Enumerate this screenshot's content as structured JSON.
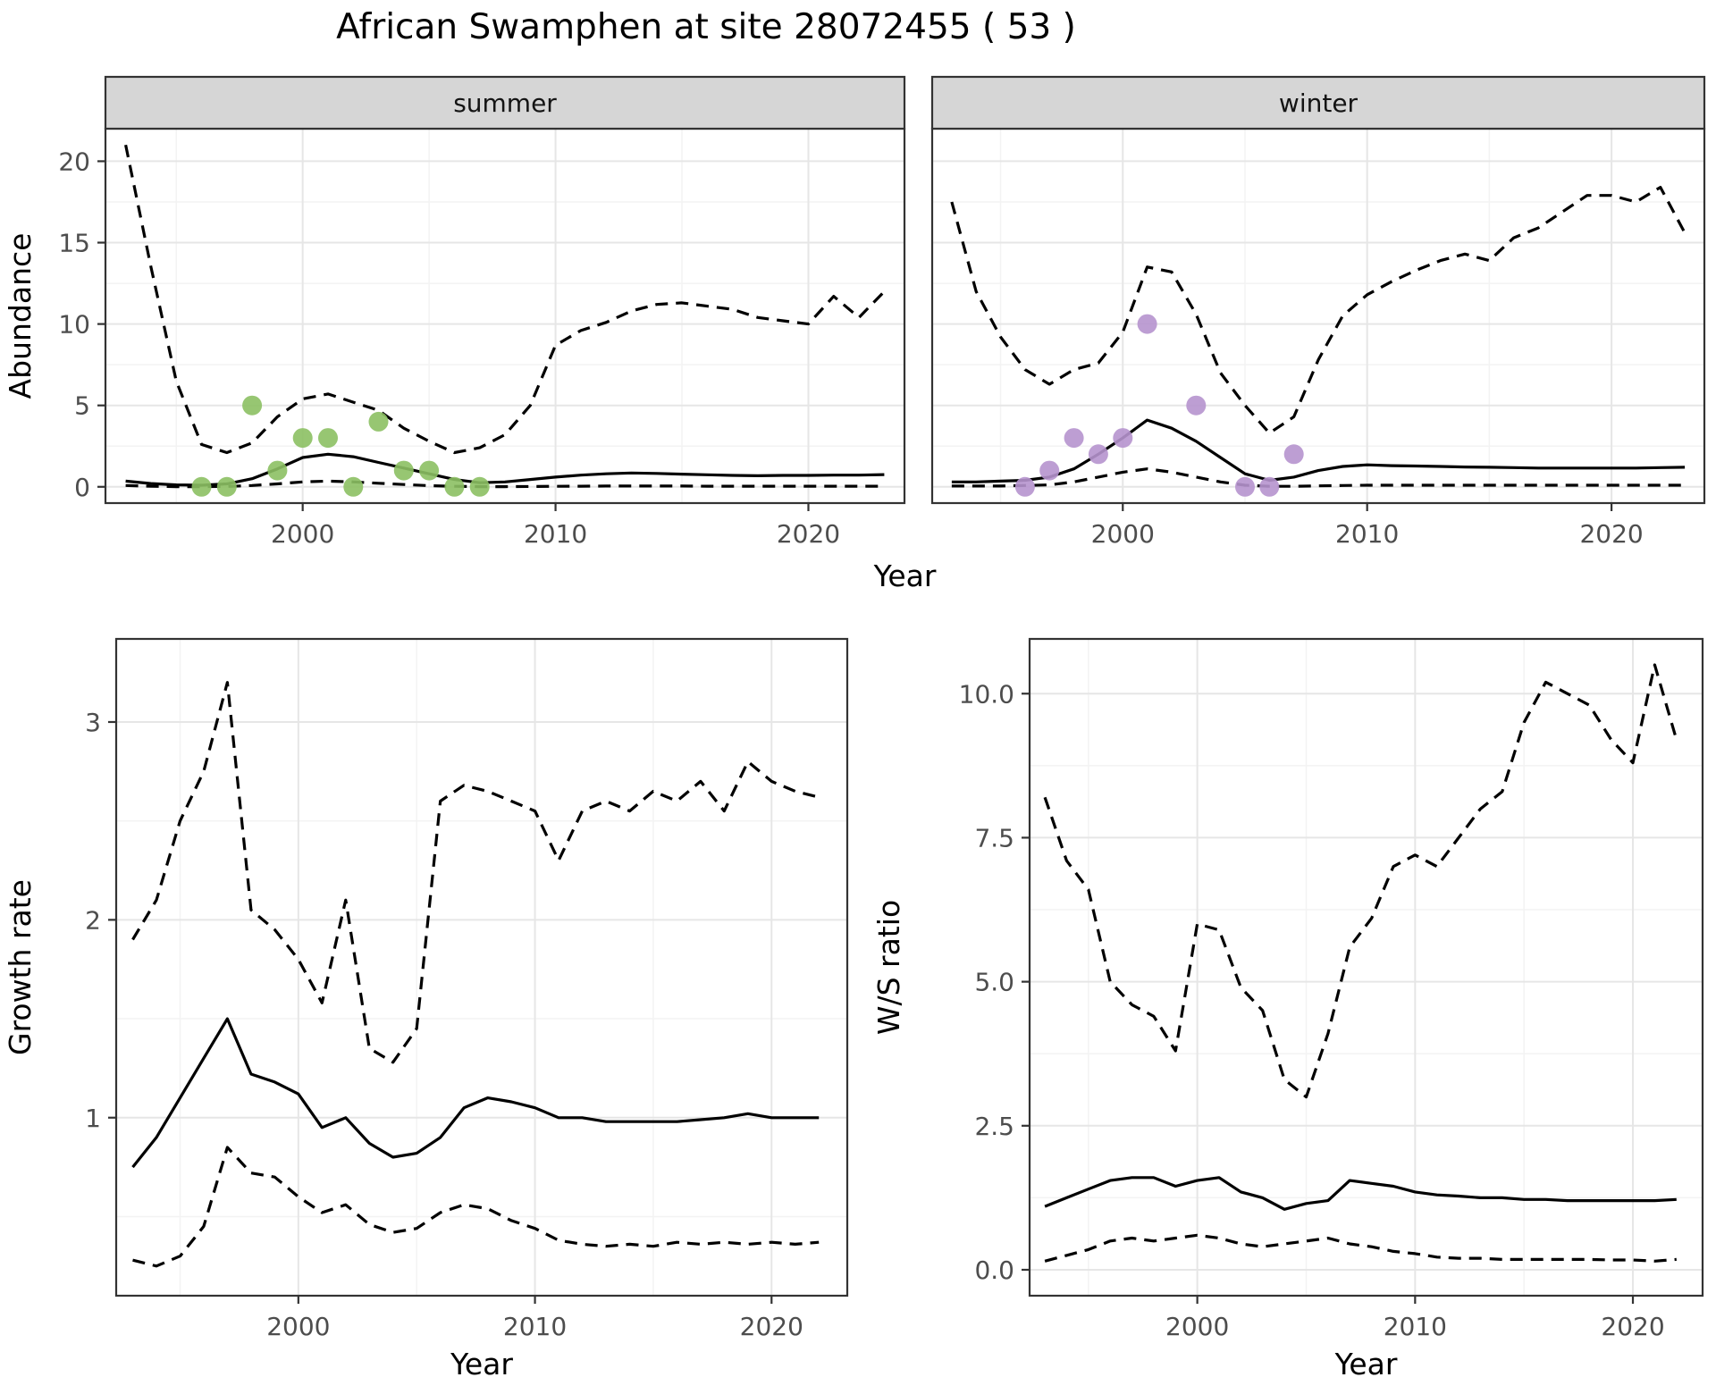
{
  "title": "African Swamphen at site 28072455 ( 53 )",
  "colors": {
    "line": "#000000",
    "strip_bg": "#d6d6d6",
    "panel_border": "#333333",
    "grid_major": "#e6e6e6",
    "grid_minor": "#f3f3f3",
    "tick_label": "#4d4d4d",
    "summer_point": "#8cc063",
    "winter_point": "#b694ce"
  },
  "chart_data": [
    {
      "id": "abundance",
      "type": "line",
      "xlabel": "Year",
      "ylabel": "Abundance",
      "xlim": [
        1992.2,
        2023.8
      ],
      "ylim": [
        -1.0,
        22.0
      ],
      "xticks": [
        2000,
        2010,
        2020
      ],
      "xtick_labels": [
        "2000",
        "2010",
        "2020"
      ],
      "yticks": [
        0,
        5,
        10,
        15,
        20
      ],
      "ytick_labels": [
        "0",
        "5",
        "10",
        "15",
        "20"
      ],
      "xminor": [
        1995,
        2005,
        2015
      ],
      "yminor": [
        2.5,
        7.5,
        12.5,
        17.5
      ],
      "facets": [
        {
          "label": "summer",
          "point_color": "#8cc063",
          "x": [
            1993,
            1994,
            1995,
            1996,
            1997,
            1998,
            1999,
            2000,
            2001,
            2002,
            2003,
            2004,
            2005,
            2006,
            2007,
            2008,
            2009,
            2010,
            2011,
            2012,
            2013,
            2014,
            2015,
            2016,
            2017,
            2018,
            2019,
            2020,
            2021,
            2022,
            2023
          ],
          "series": [
            {
              "name": "upper-ci",
              "style": "dashed",
              "y": [
                21.0,
                13.5,
                6.5,
                2.6,
                2.1,
                2.7,
                4.3,
                5.4,
                5.7,
                5.2,
                4.7,
                3.6,
                2.8,
                2.1,
                2.4,
                3.2,
                5.0,
                8.7,
                9.6,
                10.1,
                10.8,
                11.2,
                11.3,
                11.1,
                10.9,
                10.4,
                10.2,
                10.0,
                11.7,
                10.4,
                12.0
              ]
            },
            {
              "name": "estimate",
              "style": "solid",
              "y": [
                0.35,
                0.2,
                0.12,
                0.1,
                0.18,
                0.5,
                1.1,
                1.8,
                2.0,
                1.85,
                1.5,
                1.15,
                0.8,
                0.45,
                0.25,
                0.3,
                0.45,
                0.6,
                0.72,
                0.8,
                0.85,
                0.82,
                0.78,
                0.74,
                0.7,
                0.68,
                0.7,
                0.7,
                0.72,
                0.72,
                0.75
              ]
            },
            {
              "name": "lower-ci",
              "style": "dashed",
              "y": [
                0.08,
                0.03,
                0.01,
                0.01,
                0.02,
                0.08,
                0.18,
                0.3,
                0.35,
                0.3,
                0.22,
                0.14,
                0.07,
                0.03,
                0.01,
                0.01,
                0.02,
                0.03,
                0.04,
                0.05,
                0.05,
                0.05,
                0.05,
                0.04,
                0.04,
                0.04,
                0.04,
                0.04,
                0.04,
                0.04,
                0.04
              ]
            }
          ],
          "points": {
            "x": [
              1996,
              1997,
              1998,
              1999,
              2000,
              2001,
              2002,
              2003,
              2004,
              2005,
              2006,
              2007
            ],
            "y": [
              0,
              0,
              5,
              1,
              3,
              3,
              0,
              4,
              1,
              1,
              0,
              0
            ]
          }
        },
        {
          "label": "winter",
          "point_color": "#b694ce",
          "x": [
            1993,
            1994,
            1995,
            1996,
            1997,
            1998,
            1999,
            2000,
            2001,
            2002,
            2003,
            2004,
            2005,
            2006,
            2007,
            2008,
            2009,
            2010,
            2011,
            2012,
            2013,
            2014,
            2015,
            2016,
            2017,
            2018,
            2019,
            2020,
            2021,
            2022,
            2023
          ],
          "series": [
            {
              "name": "upper-ci",
              "style": "dashed",
              "y": [
                17.5,
                12.0,
                9.2,
                7.2,
                6.3,
                7.2,
                7.6,
                9.5,
                13.5,
                13.2,
                10.6,
                7.0,
                5.0,
                3.3,
                4.3,
                7.8,
                10.5,
                11.8,
                12.6,
                13.3,
                13.9,
                14.3,
                13.9,
                15.3,
                15.9,
                16.9,
                17.9,
                17.9,
                17.5,
                18.4,
                15.6
              ]
            },
            {
              "name": "estimate",
              "style": "solid",
              "y": [
                0.3,
                0.3,
                0.35,
                0.4,
                0.6,
                1.1,
                2.0,
                3.0,
                4.1,
                3.6,
                2.8,
                1.8,
                0.8,
                0.4,
                0.6,
                1.0,
                1.25,
                1.35,
                1.3,
                1.28,
                1.25,
                1.22,
                1.2,
                1.18,
                1.15,
                1.15,
                1.15,
                1.15,
                1.15,
                1.18,
                1.2
              ]
            },
            {
              "name": "lower-ci",
              "style": "dashed",
              "y": [
                0.05,
                0.05,
                0.05,
                0.08,
                0.12,
                0.3,
                0.6,
                0.9,
                1.1,
                0.9,
                0.6,
                0.3,
                0.1,
                0.03,
                0.03,
                0.06,
                0.08,
                0.1,
                0.1,
                0.1,
                0.1,
                0.1,
                0.1,
                0.1,
                0.1,
                0.1,
                0.1,
                0.1,
                0.1,
                0.1,
                0.1
              ]
            }
          ],
          "points": {
            "x": [
              1996,
              1997,
              1998,
              1999,
              2000,
              2001,
              2003,
              2005,
              2006,
              2007
            ],
            "y": [
              0,
              1,
              3,
              2,
              3,
              10,
              5,
              0,
              0,
              2
            ]
          }
        }
      ]
    },
    {
      "id": "growth-rate",
      "type": "line",
      "xlabel": "Year",
      "ylabel": "Growth rate",
      "xlim": [
        1992.3,
        2023.2
      ],
      "ylim": [
        0.1,
        3.42
      ],
      "xticks": [
        2000,
        2010,
        2020
      ],
      "xtick_labels": [
        "2000",
        "2010",
        "2020"
      ],
      "yticks": [
        1,
        2,
        3
      ],
      "ytick_labels": [
        "1",
        "2",
        "3"
      ],
      "xminor": [
        1995,
        2005,
        2015
      ],
      "yminor": [
        0.5,
        1.5,
        2.5
      ],
      "facets": [
        {
          "label": "",
          "x": [
            1993,
            1994,
            1995,
            1996,
            1997,
            1998,
            1999,
            2000,
            2001,
            2002,
            2003,
            2004,
            2005,
            2006,
            2007,
            2008,
            2009,
            2010,
            2011,
            2012,
            2013,
            2014,
            2015,
            2016,
            2017,
            2018,
            2019,
            2020,
            2021,
            2022
          ],
          "series": [
            {
              "name": "upper-ci",
              "style": "dashed",
              "y": [
                1.9,
                2.1,
                2.5,
                2.75,
                3.2,
                2.05,
                1.95,
                1.8,
                1.58,
                2.1,
                1.35,
                1.28,
                1.45,
                2.6,
                2.68,
                2.65,
                2.6,
                2.55,
                2.3,
                2.55,
                2.6,
                2.55,
                2.65,
                2.6,
                2.7,
                2.55,
                2.8,
                2.7,
                2.65,
                2.62
              ]
            },
            {
              "name": "estimate",
              "style": "solid",
              "y": [
                0.75,
                0.9,
                1.1,
                1.3,
                1.5,
                1.22,
                1.18,
                1.12,
                0.95,
                1.0,
                0.87,
                0.8,
                0.82,
                0.9,
                1.05,
                1.1,
                1.08,
                1.05,
                1.0,
                1.0,
                0.98,
                0.98,
                0.98,
                0.98,
                0.99,
                1.0,
                1.02,
                1.0,
                1.0,
                1.0
              ]
            },
            {
              "name": "lower-ci",
              "style": "dashed",
              "y": [
                0.28,
                0.25,
                0.3,
                0.45,
                0.85,
                0.72,
                0.7,
                0.6,
                0.52,
                0.56,
                0.46,
                0.42,
                0.44,
                0.52,
                0.56,
                0.54,
                0.48,
                0.44,
                0.38,
                0.36,
                0.35,
                0.36,
                0.35,
                0.37,
                0.36,
                0.37,
                0.36,
                0.37,
                0.36,
                0.37
              ]
            }
          ]
        }
      ]
    },
    {
      "id": "ws-ratio",
      "type": "line",
      "xlabel": "Year",
      "ylabel": "W/S ratio",
      "xlim": [
        1992.3,
        2023.2
      ],
      "ylim": [
        -0.45,
        10.95
      ],
      "xticks": [
        2000,
        2010,
        2020
      ],
      "xtick_labels": [
        "2000",
        "2010",
        "2020"
      ],
      "yticks": [
        0,
        2.5,
        5,
        7.5,
        10
      ],
      "ytick_labels": [
        "0.0",
        "2.5",
        "5.0",
        "7.5",
        "10.0"
      ],
      "xminor": [
        1995,
        2005,
        2015
      ],
      "yminor": [
        1.25,
        3.75,
        6.25,
        8.75
      ],
      "facets": [
        {
          "label": "",
          "x": [
            1993,
            1994,
            1995,
            1996,
            1997,
            1998,
            1999,
            2000,
            2001,
            2002,
            2003,
            2004,
            2005,
            2006,
            2007,
            2008,
            2009,
            2010,
            2011,
            2012,
            2013,
            2014,
            2015,
            2016,
            2017,
            2018,
            2019,
            2020,
            2021,
            2022
          ],
          "series": [
            {
              "name": "upper-ci",
              "style": "dashed",
              "y": [
                8.2,
                7.1,
                6.6,
                5.0,
                4.6,
                4.4,
                3.8,
                6.0,
                5.9,
                4.9,
                4.5,
                3.3,
                3.0,
                4.1,
                5.6,
                6.1,
                7.0,
                7.2,
                7.0,
                7.5,
                8.0,
                8.3,
                9.5,
                10.2,
                10.0,
                9.8,
                9.2,
                8.8,
                10.5,
                9.2
              ]
            },
            {
              "name": "estimate",
              "style": "solid",
              "y": [
                1.1,
                1.25,
                1.4,
                1.55,
                1.6,
                1.6,
                1.45,
                1.55,
                1.6,
                1.35,
                1.25,
                1.05,
                1.15,
                1.2,
                1.55,
                1.5,
                1.45,
                1.35,
                1.3,
                1.28,
                1.25,
                1.25,
                1.22,
                1.22,
                1.2,
                1.2,
                1.2,
                1.2,
                1.2,
                1.22
              ]
            },
            {
              "name": "lower-ci",
              "style": "dashed",
              "y": [
                0.15,
                0.25,
                0.35,
                0.5,
                0.55,
                0.5,
                0.55,
                0.6,
                0.55,
                0.45,
                0.4,
                0.45,
                0.5,
                0.55,
                0.45,
                0.4,
                0.32,
                0.28,
                0.22,
                0.2,
                0.2,
                0.18,
                0.18,
                0.18,
                0.18,
                0.18,
                0.17,
                0.17,
                0.15,
                0.18
              ]
            }
          ]
        }
      ]
    }
  ]
}
